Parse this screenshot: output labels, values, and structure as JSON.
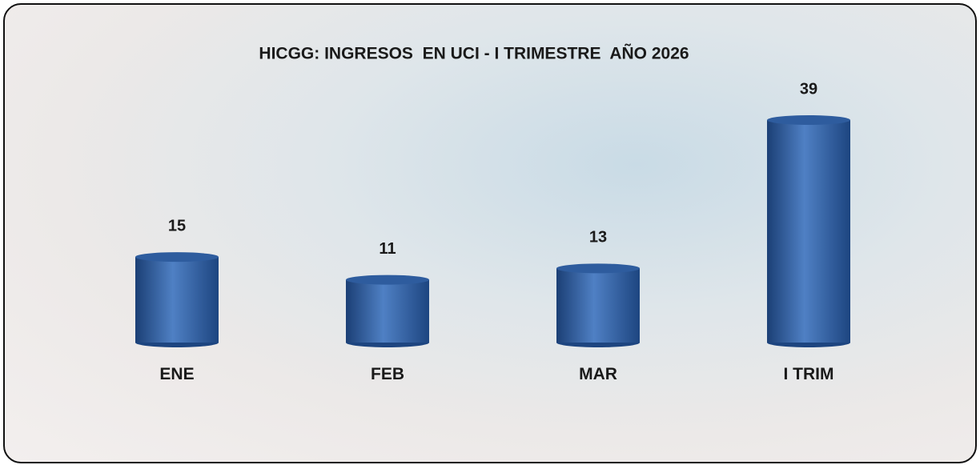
{
  "chart_data": {
    "type": "bar",
    "title": "HICGG: INGRESOS  EN UCI - I TRIMESTRE  AÑO 2026",
    "categories": [
      "ENE",
      "FEB",
      "MAR",
      "I TRIM"
    ],
    "values": [
      15,
      11,
      13,
      39
    ],
    "color": "#2e5c9e"
  }
}
